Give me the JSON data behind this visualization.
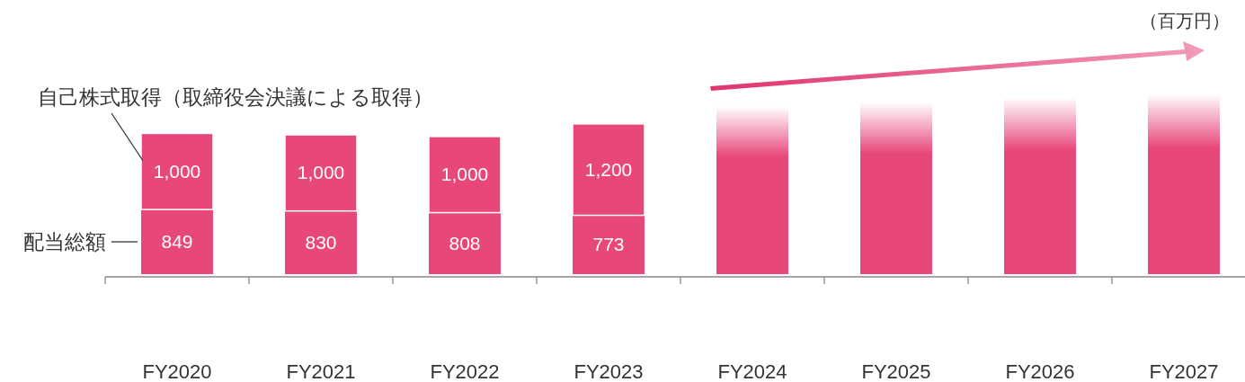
{
  "chart_data": {
    "type": "bar",
    "stacked": true,
    "categories": [
      "FY2020",
      "FY2021",
      "FY2022",
      "FY2023",
      "FY2024",
      "FY2025",
      "FY2026",
      "FY2027"
    ],
    "series": [
      {
        "name": "配当総額",
        "color": "#e8477a",
        "values": [
          849,
          830,
          808,
          773,
          null,
          null,
          null,
          null
        ],
        "value_labels": [
          "849",
          "830",
          "808",
          "773",
          null,
          null,
          null,
          null
        ]
      },
      {
        "name": "自己株式取得（取締役会決議による取得）",
        "color": "#e8477a",
        "values": [
          1000,
          1000,
          1000,
          1200,
          null,
          null,
          null,
          null
        ],
        "value_labels": [
          "1,000",
          "1,000",
          "1,000",
          "1,200",
          null,
          null,
          null,
          null
        ]
      },
      {
        "color": "#e8477a",
        "values": [
          null,
          null,
          null,
          null,
          2200,
          2260,
          2320,
          2370
        ]
      }
    ],
    "annotations": [
      "（百万円）"
    ]
  }
}
